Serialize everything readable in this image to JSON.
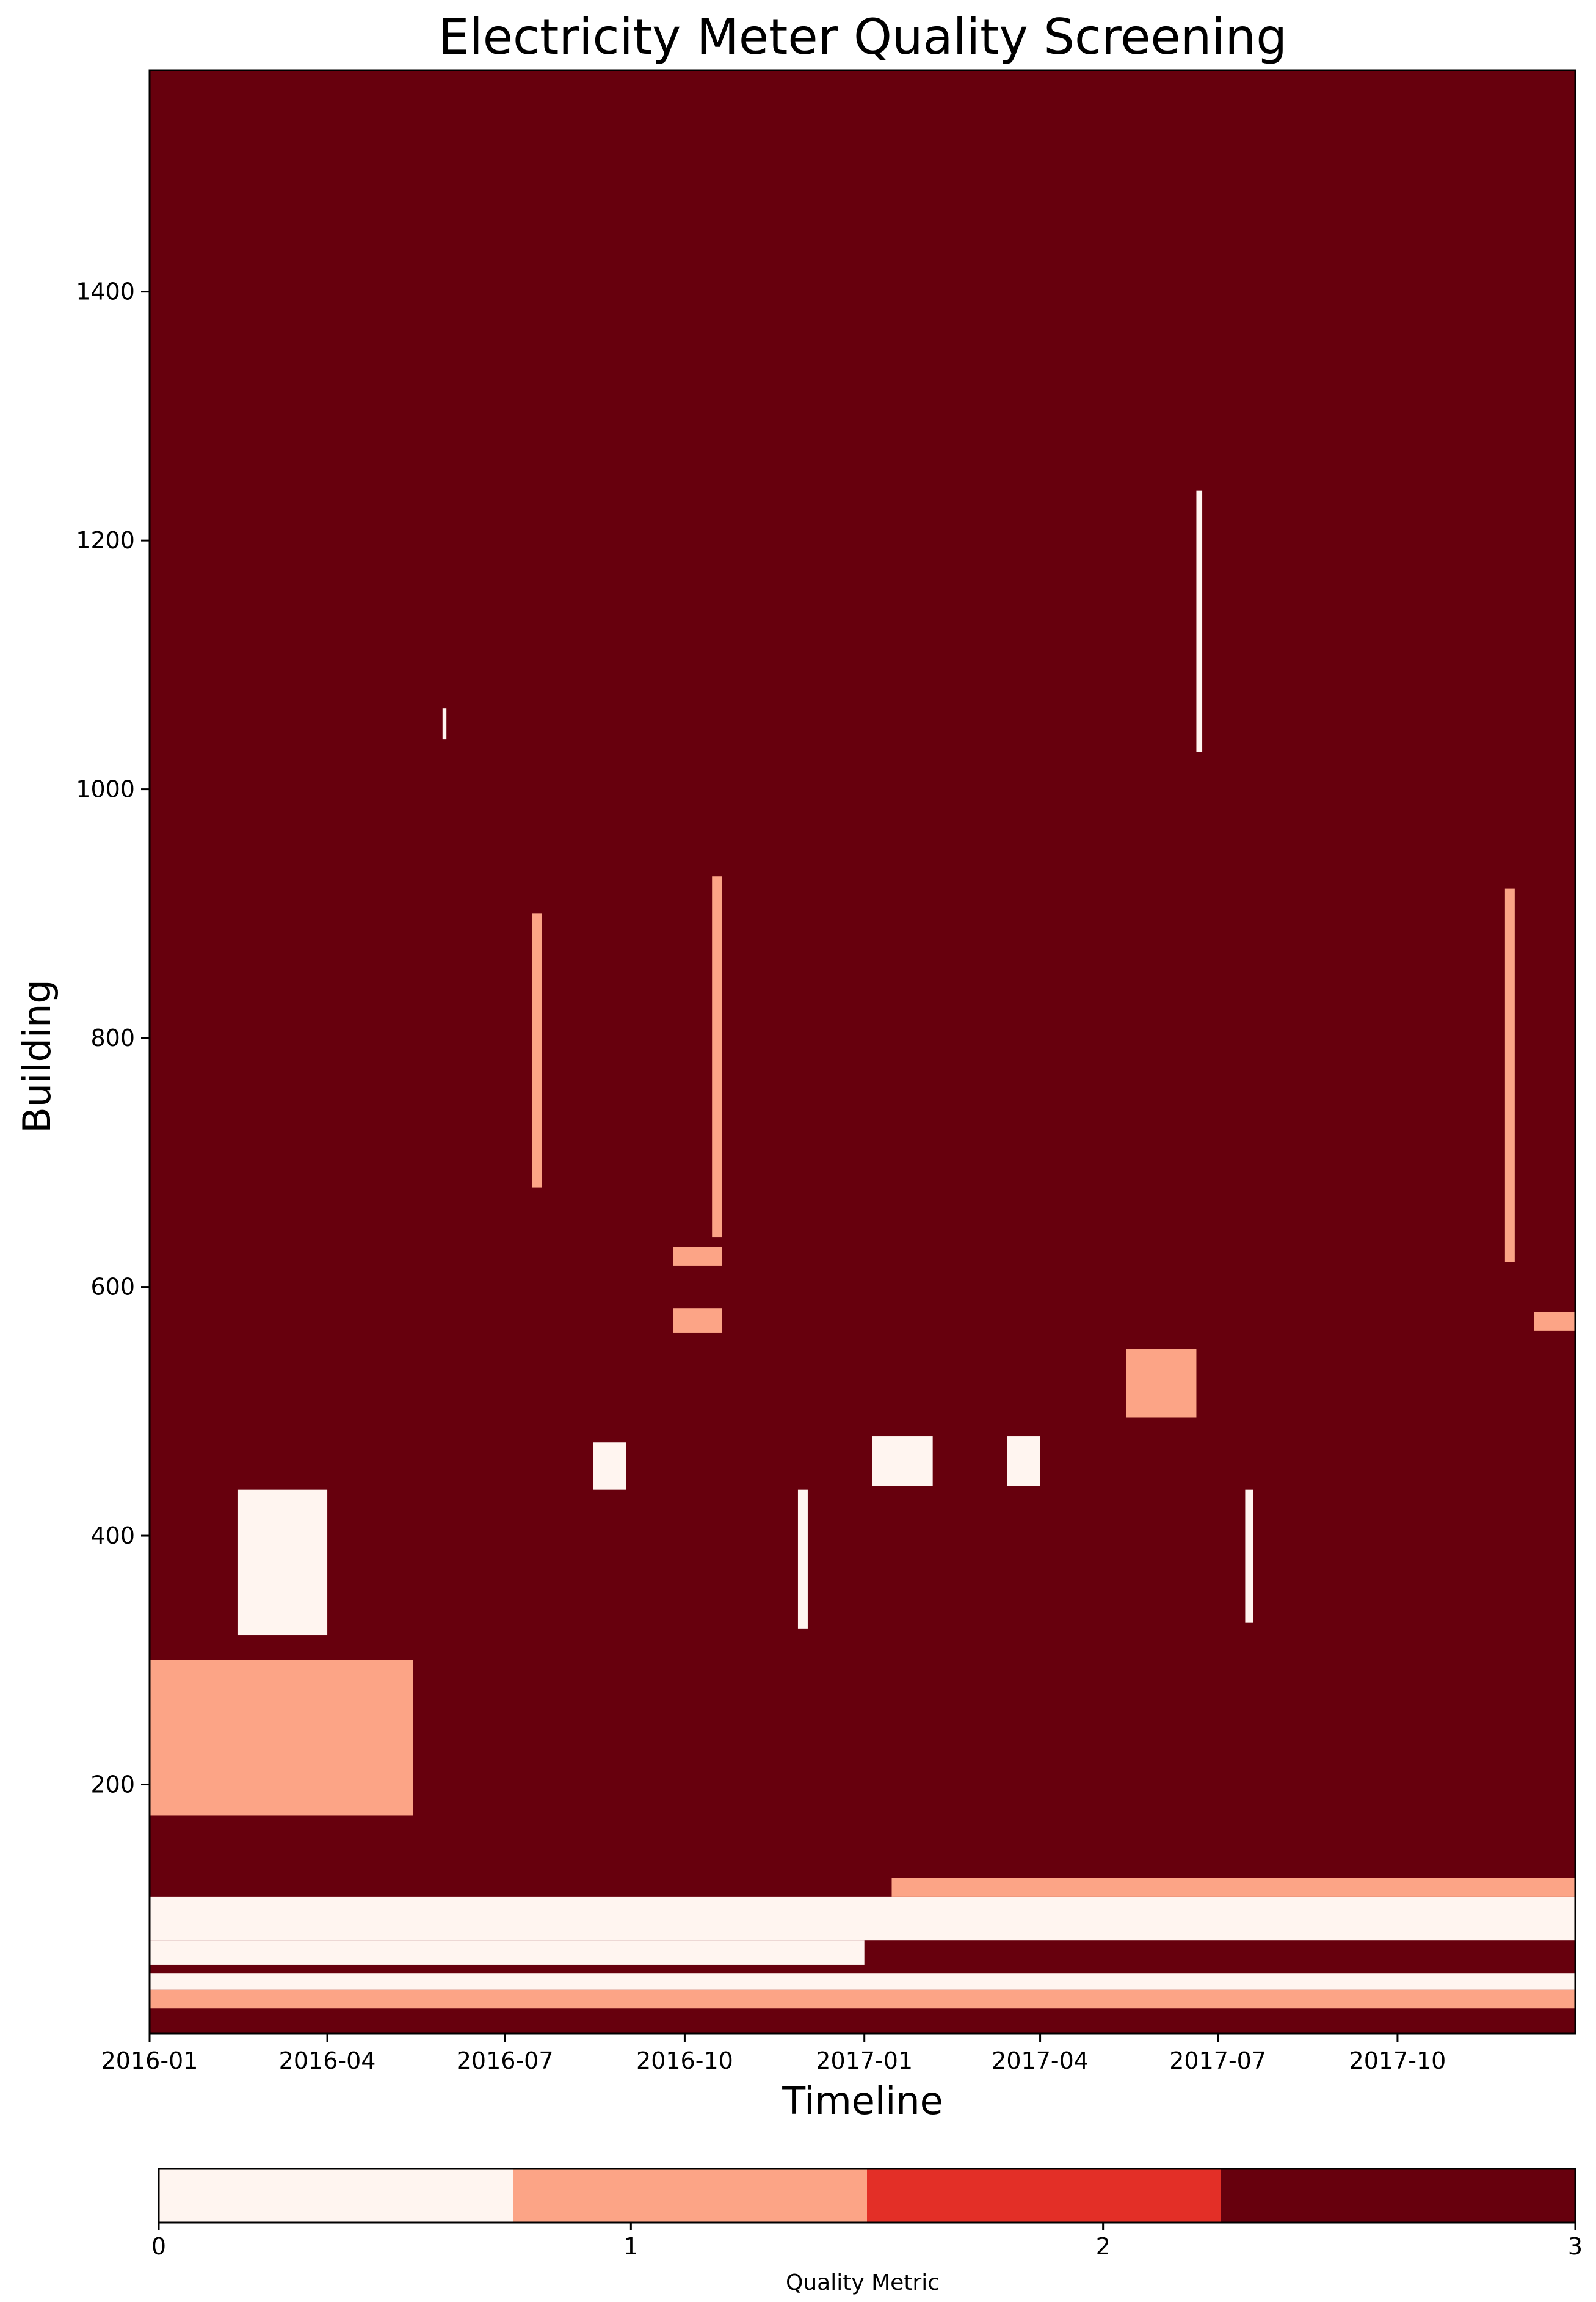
{
  "chart_data": {
    "type": "heatmap",
    "title": "Electricity Meter Quality Screening",
    "xlabel": "Timeline",
    "ylabel": "Building",
    "x_range": [
      "2016-01-01",
      "2017-12-31"
    ],
    "x_ticks": [
      "2016-01",
      "2016-04",
      "2016-07",
      "2016-10",
      "2017-01",
      "2017-04",
      "2017-07",
      "2017-10"
    ],
    "ylim": [
      0,
      1578
    ],
    "y_ticks": [
      200,
      400,
      600,
      800,
      1000,
      1200,
      1400
    ],
    "colormap": "Reds",
    "colorbar": {
      "label": "Quality Metric",
      "ticks": [
        0,
        1,
        2,
        3
      ],
      "levels": [
        {
          "value": 0,
          "color": "#fff5f0"
        },
        {
          "value": 1,
          "color": "#fca486"
        },
        {
          "value": 2,
          "color": "#e32f27"
        },
        {
          "value": 3,
          "color": "#67000d"
        }
      ]
    },
    "dominant_value": 3,
    "regions": [
      {
        "value": 1,
        "x": [
          "2016-01-01",
          "2016-05-15"
        ],
        "y": [
          175,
          300
        ]
      },
      {
        "value": 0,
        "x": [
          "2016-02-15",
          "2016-04-01"
        ],
        "y": [
          320,
          437
        ]
      },
      {
        "value": 1,
        "x": [
          "2017-05-15",
          "2017-06-20"
        ],
        "y": [
          495,
          550
        ]
      },
      {
        "value": 1,
        "x": [
          "2016-09-25",
          "2016-10-20"
        ],
        "y": [
          563,
          583
        ]
      },
      {
        "value": 1,
        "x": [
          "2016-09-25",
          "2016-10-20"
        ],
        "y": [
          617,
          632
        ]
      },
      {
        "value": 1,
        "x": [
          "2017-12-10",
          "2017-12-31"
        ],
        "y": [
          565,
          580
        ]
      },
      {
        "value": 0,
        "x": [
          "2016-01-01",
          "2017-01-01"
        ],
        "y": [
          55,
          75
        ]
      },
      {
        "value": 0,
        "x": [
          "2016-01-01",
          "2017-12-31"
        ],
        "y": [
          75,
          110
        ]
      },
      {
        "value": 1,
        "x": [
          "2017-01-15",
          "2017-12-31"
        ],
        "y": [
          110,
          125
        ]
      },
      {
        "value": 1,
        "x": [
          "2016-01-01",
          "2017-12-31"
        ],
        "y": [
          20,
          35
        ]
      },
      {
        "value": 0,
        "x": [
          "2016-01-01",
          "2017-12-31"
        ],
        "y": [
          35,
          48
        ]
      },
      {
        "value": 0,
        "x": [
          "2016-11-28",
          "2016-12-03"
        ],
        "y": [
          325,
          437
        ]
      },
      {
        "value": 0,
        "x": [
          "2017-07-15",
          "2017-07-19"
        ],
        "y": [
          330,
          437
        ]
      },
      {
        "value": 0,
        "x": [
          "2016-08-15",
          "2016-09-01"
        ],
        "y": [
          437,
          475
        ]
      },
      {
        "value": 0,
        "x": [
          "2017-01-05",
          "2017-02-05"
        ],
        "y": [
          440,
          480
        ]
      },
      {
        "value": 0,
        "x": [
          "2017-03-15",
          "2017-04-01"
        ],
        "y": [
          440,
          480
        ]
      },
      {
        "value": 0,
        "x": [
          "2016-05-30",
          "2016-06-01"
        ],
        "y": [
          1040,
          1065
        ]
      },
      {
        "value": 0,
        "x": [
          "2017-06-20",
          "2017-06-23"
        ],
        "y": [
          1030,
          1240
        ]
      },
      {
        "value": 1,
        "x": [
          "2016-07-15",
          "2016-07-20"
        ],
        "y": [
          680,
          900
        ]
      },
      {
        "value": 1,
        "x": [
          "2016-10-15",
          "2016-10-20"
        ],
        "y": [
          640,
          930
        ]
      },
      {
        "value": 1,
        "x": [
          "2017-11-25",
          "2017-11-30"
        ],
        "y": [
          620,
          920
        ]
      }
    ]
  }
}
